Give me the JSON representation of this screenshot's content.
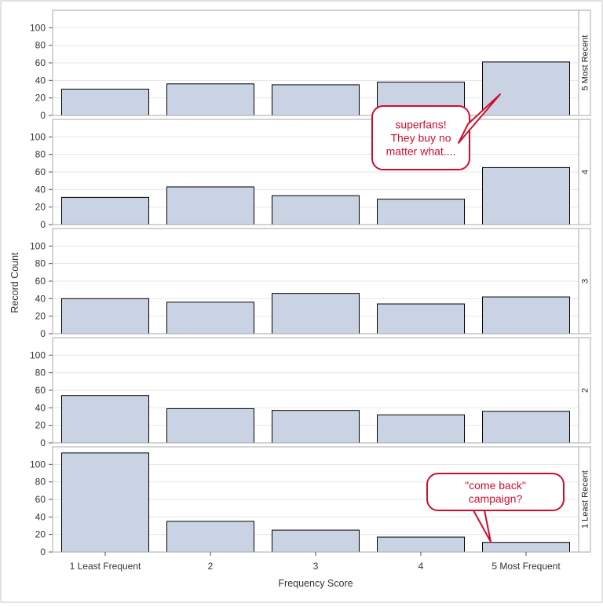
{
  "chart_data": {
    "type": "bar",
    "xlabel": "Frequency Score",
    "ylabel": "Record Count",
    "categories": [
      "1 Least Frequent",
      "2",
      "3",
      "4",
      "5 Most Frequent"
    ],
    "ylim": [
      0,
      120
    ],
    "yticks": [
      0,
      20,
      40,
      60,
      80,
      100
    ],
    "grid": true,
    "colors": {
      "bar_fill": "#c9d3e3",
      "bar_stroke": "#000000",
      "grid": "#e6e6e6",
      "callout": "#c8102e"
    },
    "panels": [
      {
        "row_label": "5 Most Recent",
        "values": [
          30,
          36,
          35,
          38,
          61
        ]
      },
      {
        "row_label": "4",
        "values": [
          31,
          43,
          33,
          29,
          65
        ]
      },
      {
        "row_label": "3",
        "values": [
          40,
          36,
          46,
          34,
          42
        ]
      },
      {
        "row_label": "2",
        "values": [
          54,
          39,
          37,
          32,
          36
        ]
      },
      {
        "row_label": "1 Least Recent",
        "values": [
          113,
          35,
          25,
          17,
          11
        ]
      }
    ],
    "annotations": [
      {
        "lines": [
          "superfans!",
          "They buy no",
          "matter what...."
        ],
        "panel": 0,
        "category": 4
      },
      {
        "lines": [
          "\"come back\"",
          "campaign?"
        ],
        "panel": 4,
        "category": 4
      }
    ]
  }
}
